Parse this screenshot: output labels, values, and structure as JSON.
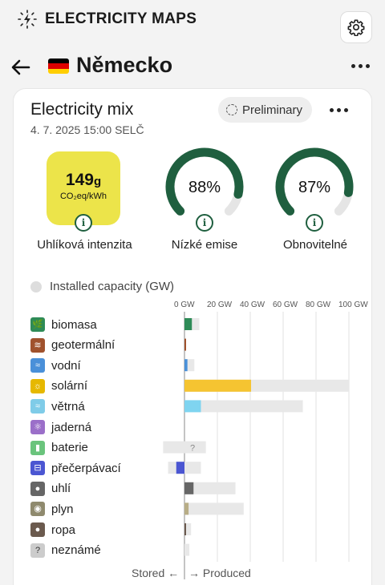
{
  "app": {
    "title": "ELECTRICITY MAPS"
  },
  "icons": {
    "logo": "lightning-logo-icon",
    "settings": "gear-icon",
    "back": "arrow-left-icon",
    "more": "more-horizontal-icon",
    "info": "info-icon",
    "preliminary": "dashed-circle-icon"
  },
  "zone": {
    "name": "Německo",
    "flag_colors": [
      "#000000",
      "#dd0000",
      "#ffce00"
    ]
  },
  "mix": {
    "title": "Electricity mix",
    "date": "4. 7. 2025 15:00 SELČ",
    "preliminary_label": "Preliminary"
  },
  "carbon_intensity": {
    "value": "149",
    "unit_suffix": "g",
    "unit": "CO₂eq/kWh",
    "label": "Uhlíková intenzita",
    "color": "#ece44a"
  },
  "low_emission": {
    "value": "88%",
    "fraction": 0.88,
    "label": "Nízké emise"
  },
  "renewable": {
    "value": "87%",
    "fraction": 0.87,
    "label": "Obnovitelné"
  },
  "gauge_colors": {
    "fill": "#1f5f3f",
    "track": "#e5e5e5"
  },
  "capacity_legend": {
    "label": "Installed capacity (GW)"
  },
  "footer": {
    "stored": "Stored ←",
    "produced": "→ Produced"
  },
  "chart_data": {
    "type": "bar",
    "orientation": "horizontal",
    "x_ticks": [
      "0 GW",
      "20 GW",
      "40 GW",
      "60 GW",
      "80 GW",
      "100 GW"
    ],
    "xlim": [
      0,
      100
    ],
    "categories": [
      "biomasa",
      "geotermální",
      "vodní",
      "solární",
      "větrná",
      "jaderná",
      "baterie",
      "přečerpávací",
      "uhlí",
      "plyn",
      "ropa",
      "neznámé"
    ],
    "icon_colors": [
      "#2e8b57",
      "#a0522d",
      "#4a90d9",
      "#e6b800",
      "#7fcce8",
      "#9b6fc9",
      "#6ac47c",
      "#4b56d2",
      "#666666",
      "#8f8a6e",
      "#6b5a4e",
      "#cccccc"
    ],
    "icon_names": [
      "leaf-icon",
      "geothermal-icon",
      "water-icon",
      "sun-icon",
      "wind-icon",
      "atom-icon",
      "battery-icon",
      "pumped-storage-icon",
      "coal-drop-icon",
      "gas-flame-icon",
      "oil-drop-icon",
      "question-icon"
    ],
    "produced": [
      4.5,
      0.1,
      1.8,
      40.5,
      10,
      0,
      0,
      0,
      5.5,
      2.5,
      0.5,
      0
    ],
    "capacity": [
      9,
      0.3,
      6,
      100,
      72,
      0,
      13,
      10,
      31,
      36,
      4,
      3
    ],
    "stored": [
      0,
      0,
      0,
      0,
      0,
      0,
      0,
      5,
      0,
      0,
      0,
      0
    ],
    "stored_capacity": [
      0,
      0,
      0,
      0,
      0,
      0,
      13,
      10,
      0,
      0,
      0,
      0
    ],
    "battery_unknown_label": "?",
    "colors": {
      "produced": [
        "#2e8b57",
        "#a0522d",
        "#4a90d9",
        "#f5c431",
        "#7fd4f0",
        "#9b6fc9",
        "#6ac47c",
        "#4b56d2",
        "#666666",
        "#b8ad86",
        "#6b5a4e",
        "#cccccc"
      ],
      "capacity": "#e8e8e8"
    }
  }
}
